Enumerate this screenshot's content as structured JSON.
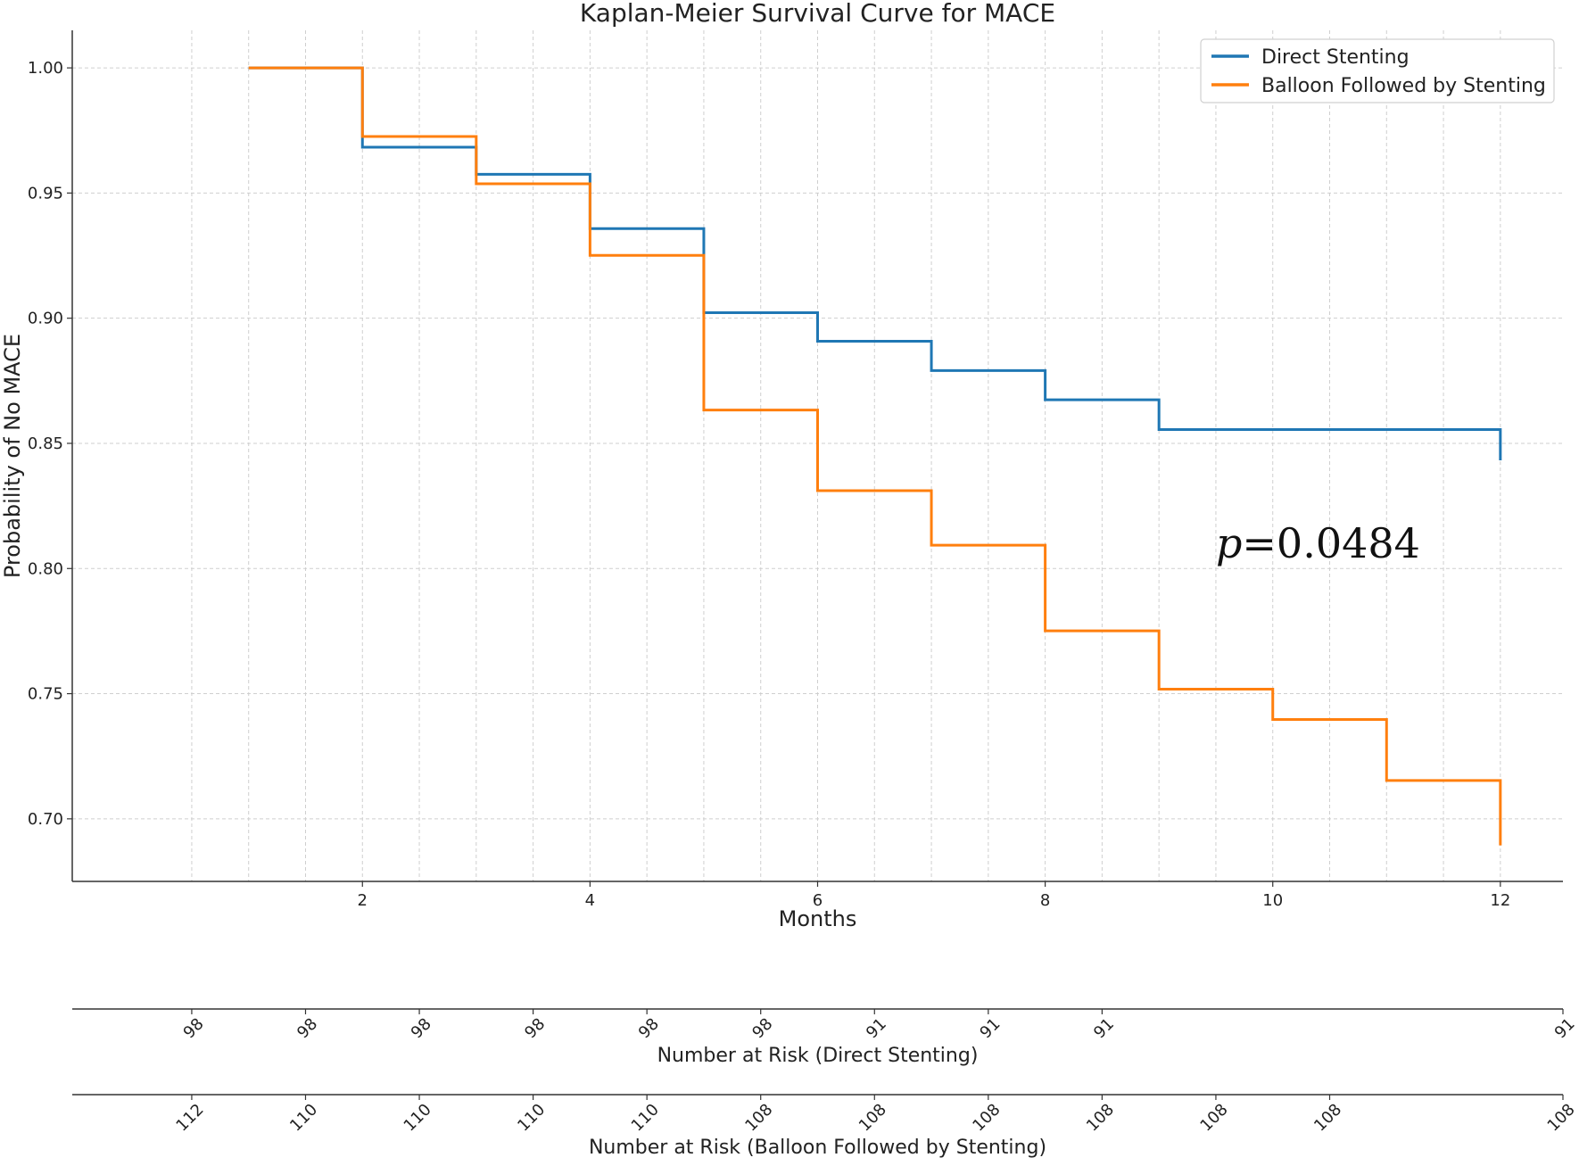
{
  "chart_data": {
    "type": "line",
    "step": true,
    "title": "Kaplan-Meier Survival Curve for MACE",
    "xlabel": "Months",
    "ylabel": "Probability of No MACE",
    "xlim": [
      -0.55,
      12.55
    ],
    "ylim": [
      0.675,
      1.015
    ],
    "x_ticks": [
      2,
      4,
      6,
      8,
      10,
      12
    ],
    "x_tick_labels": [
      "2",
      "4",
      "6",
      "8",
      "10",
      "12"
    ],
    "y_ticks": [
      0.7,
      0.75,
      0.8,
      0.85,
      0.9,
      0.95,
      1.0
    ],
    "y_tick_labels": [
      "0.70",
      "0.75",
      "0.80",
      "0.85",
      "0.90",
      "0.95",
      "1.00"
    ],
    "grid": true,
    "legend_position": "top-right",
    "series": [
      {
        "name": "Direct Stenting",
        "color": "#1f77b4",
        "x": [
          1,
          2,
          3,
          4,
          5,
          6,
          7,
          8,
          9,
          10,
          11,
          12,
          12
        ],
        "y": [
          1.0,
          0.9683,
          0.9575,
          0.9358,
          0.9022,
          0.8908,
          0.8791,
          0.8674,
          0.8555,
          0.8555,
          0.8555,
          0.8555,
          0.8432
        ]
      },
      {
        "name": "Balloon Followed by Stenting",
        "color": "#ff7f0e",
        "x": [
          1,
          2,
          3,
          4,
          5,
          6,
          7,
          8,
          9,
          10,
          11,
          12,
          12
        ],
        "y": [
          1.0,
          0.9726,
          0.9537,
          0.9251,
          0.8633,
          0.8311,
          0.8093,
          0.7751,
          0.7518,
          0.7397,
          0.7153,
          0.7153,
          0.6894
        ]
      }
    ],
    "annotation": {
      "p_symbol": "p",
      "p_rest": "=0.0484",
      "x": 9.5,
      "y": 0.81
    },
    "risk_tables": [
      {
        "title": "Number at Risk (Direct Stenting)",
        "values": [
          "98",
          "98",
          "98",
          "98",
          "98",
          "98",
          "91",
          "91",
          "91",
          "91"
        ],
        "positions": [
          0.5,
          1.5,
          2.5,
          3.5,
          4.5,
          5.5,
          6.5,
          7.5,
          8.5,
          12.55
        ]
      },
      {
        "title": "Number at Risk (Balloon Followed by Stenting)",
        "values": [
          "112",
          "110",
          "110",
          "110",
          "110",
          "108",
          "108",
          "108",
          "108",
          "108",
          "108",
          "108"
        ],
        "positions": [
          0.5,
          1.5,
          2.5,
          3.5,
          4.5,
          5.5,
          6.5,
          7.5,
          8.5,
          9.5,
          10.5,
          12.55
        ]
      }
    ]
  }
}
